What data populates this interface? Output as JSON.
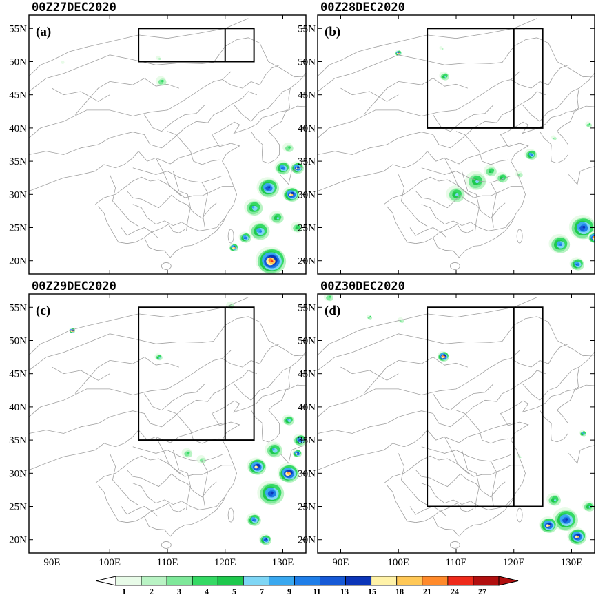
{
  "panels": [
    {
      "title": "00Z27DEC2020",
      "label": "(a)"
    },
    {
      "title": "00Z28DEC2020",
      "label": "(b)"
    },
    {
      "title": "00Z29DEC2020",
      "label": "(c)"
    },
    {
      "title": "00Z30DEC2020",
      "label": "(d)"
    }
  ],
  "lat_ticks": [
    "55N",
    "50N",
    "45N",
    "40N",
    "35N",
    "30N",
    "25N",
    "20N"
  ],
  "lon_ticks": [
    "90E",
    "100E",
    "110E",
    "120E",
    "130E"
  ],
  "colorbar": {
    "labels": [
      "1",
      "2",
      "3",
      "4",
      "5",
      "7",
      "9",
      "11",
      "13",
      "15",
      "18",
      "21",
      "24",
      "27"
    ],
    "colors": [
      "#e8fbe8",
      "#b9f3c4",
      "#7fe89a",
      "#35d964",
      "#1ec84c",
      "#7fd6f5",
      "#3aa8ef",
      "#1f7ee8",
      "#1659d6",
      "#0b35b8",
      "#fff2a8",
      "#ffc857",
      "#ff8a2b",
      "#ee2a1a",
      "#b10f0f"
    ]
  }
}
